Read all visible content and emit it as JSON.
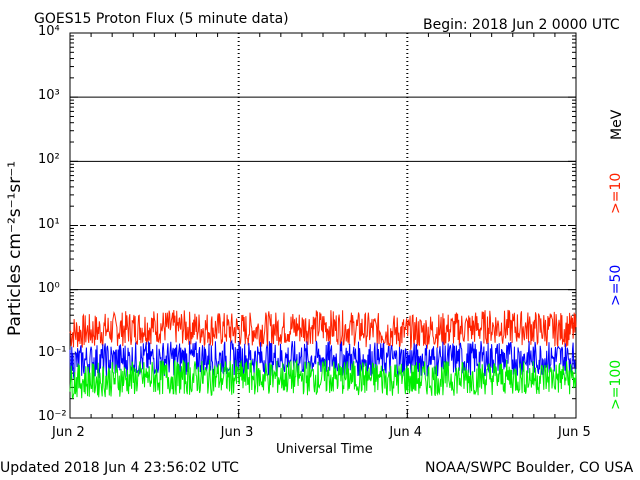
{
  "header": {
    "title": "GOES15 Proton Flux (5 minute data)",
    "begin": "Begin: 2018 Jun 2 0000 UTC"
  },
  "footer": {
    "updated": "Updated 2018 Jun  4 23:56:02 UTC",
    "credit": "NOAA/SWPC Boulder, CO USA"
  },
  "axes": {
    "xlabel": "Universal Time",
    "ylabel": "Particles cm⁻²s⁻¹sr⁻¹",
    "unit": "MeV"
  },
  "chart_data": {
    "type": "line",
    "title": "GOES15 Proton Flux (5 minute data)",
    "xlabel": "Universal Time",
    "ylabel": "Particles cm-2 s-1 sr-1",
    "yscale": "log",
    "ylim": [
      0.01,
      10000
    ],
    "xlim": [
      "2018-06-02",
      "2018-06-05"
    ],
    "x_ticks": [
      "Jun 2",
      "Jun 3",
      "Jun 4",
      "Jun 5"
    ],
    "y_ticks": [
      "10⁻²",
      "10⁻¹",
      "10⁰",
      "10¹",
      "10²",
      "10³",
      "10⁴"
    ],
    "threshold_lines": [
      {
        "value": 1,
        "style": "solid"
      },
      {
        "value": 10,
        "style": "dashed"
      },
      {
        "value": 100,
        "style": "solid"
      },
      {
        "value": 1000,
        "style": "solid"
      }
    ],
    "series": [
      {
        "name": ">=10",
        "color": "#ff2200",
        "x": [
          "Jun 2",
          "Jun 2.5",
          "Jun 3",
          "Jun 3.5",
          "Jun 4",
          "Jun 4.5",
          "Jun 5"
        ],
        "values": [
          0.2,
          0.25,
          0.22,
          0.25,
          0.2,
          0.25,
          0.22
        ]
      },
      {
        "name": ">=50",
        "color": "#0000ff",
        "x": [
          "Jun 2",
          "Jun 2.5",
          "Jun 3",
          "Jun 3.5",
          "Jun 4",
          "Jun 4.5",
          "Jun 5"
        ],
        "values": [
          0.07,
          0.08,
          0.08,
          0.08,
          0.075,
          0.08,
          0.08
        ]
      },
      {
        "name": ">=100",
        "color": "#00ee00",
        "x": [
          "Jun 2",
          "Jun 2.5",
          "Jun 3",
          "Jun 3.5",
          "Jun 4",
          "Jun 4.5",
          "Jun 5"
        ],
        "values": [
          0.035,
          0.04,
          0.04,
          0.04,
          0.038,
          0.04,
          0.04
        ]
      }
    ],
    "grid": false,
    "legend_placement": "right"
  }
}
